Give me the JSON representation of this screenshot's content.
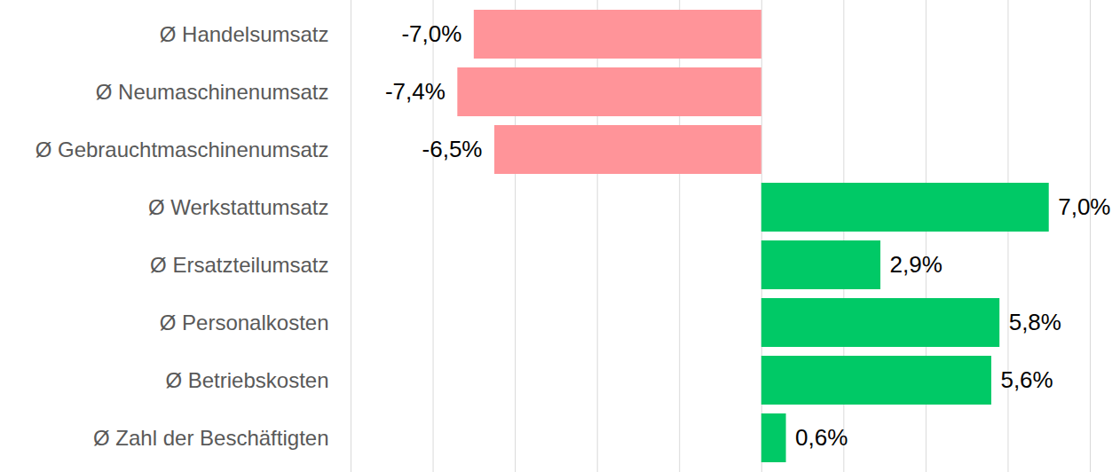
{
  "chart_data": {
    "type": "bar",
    "orientation": "horizontal",
    "categories": [
      "Ø Handelsumsatz",
      "Ø Neumaschinenumsatz",
      "Ø Gebrauchtmaschinenumsatz",
      "Ø Werkstattumsatz",
      "Ø Ersatzteilumsatz",
      "Ø Personalkosten",
      "Ø Betriebskosten",
      "Ø Zahl der Beschäftigten"
    ],
    "values": [
      -7.0,
      -7.4,
      -6.5,
      7.0,
      2.9,
      5.8,
      5.6,
      0.6
    ],
    "value_labels": [
      "-7,0%",
      "-7,4%",
      "-6,5%",
      "7,0%",
      "2,9%",
      "5,8%",
      "5,6%",
      "0,6%"
    ],
    "colors": [
      "#ff9499",
      "#ff9499",
      "#ff9499",
      "#00c966",
      "#00c966",
      "#00c966",
      "#00c966",
      "#00c966"
    ],
    "xlim": [
      -10,
      8
    ],
    "xticks": [
      -10,
      -8,
      -6,
      -4,
      -2,
      0,
      2,
      4,
      6,
      8
    ],
    "grid": true,
    "data_labels": true,
    "tick_labels": "y"
  }
}
